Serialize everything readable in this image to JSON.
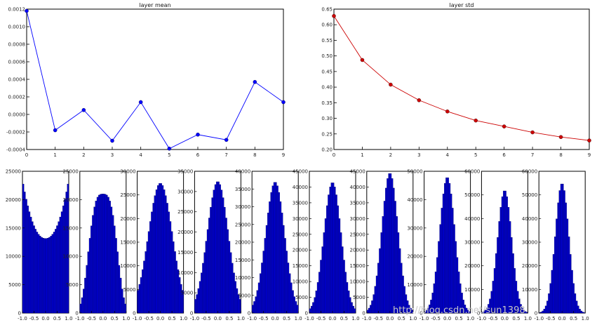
{
  "watermark": "http://blog.csdn.net/sun1398",
  "chart_data": [
    {
      "type": "line",
      "title": "layer mean",
      "x": [
        0,
        1,
        2,
        3,
        4,
        5,
        6,
        7,
        8,
        9
      ],
      "y": [
        0.00118,
        -0.00018,
        5e-05,
        -0.0003,
        0.00014,
        -0.00039,
        -0.00023,
        -0.00029,
        0.00037,
        0.00014
      ],
      "xlim": [
        0,
        9
      ],
      "ylim": [
        -0.0004,
        0.0012
      ],
      "xticks": [
        "0",
        "1",
        "2",
        "3",
        "4",
        "5",
        "6",
        "7",
        "8",
        "9"
      ],
      "yticks": [
        "0.0012",
        "0.0010",
        "0.0008",
        "0.0006",
        "0.0004",
        "0.0002",
        "0.0000",
        "-0.0002",
        "-0.0004"
      ],
      "color": "#0000ff",
      "grid": false
    },
    {
      "type": "line",
      "title": "layer std",
      "x": [
        0,
        1,
        2,
        3,
        4,
        5,
        6,
        7,
        8,
        9
      ],
      "y": [
        0.628,
        0.487,
        0.408,
        0.358,
        0.322,
        0.293,
        0.274,
        0.255,
        0.24,
        0.229
      ],
      "xlim": [
        0,
        9
      ],
      "ylim": [
        0.2,
        0.65
      ],
      "xticks": [
        "0",
        "1",
        "2",
        "3",
        "4",
        "5",
        "6",
        "7",
        "8",
        "9"
      ],
      "yticks": [
        "0.65",
        "0.60",
        "0.55",
        "0.50",
        "0.45",
        "0.40",
        "0.35",
        "0.30",
        "0.25",
        "0.20"
      ],
      "color": "#cc0000",
      "grid": false
    },
    {
      "type": "bar",
      "title": "",
      "xlim": [
        -1.0,
        1.0
      ],
      "xticks": [
        "-1.0",
        "-0.5",
        "0.0",
        "0.5",
        "1.0"
      ],
      "color": "#0000cc",
      "histograms": [
        {
          "ymax": 25000,
          "yticks": [
            "25000",
            "20000",
            "15000",
            "10000",
            "5000",
            "0"
          ],
          "peak": 23500,
          "std": 0.628,
          "shape": "u"
        },
        {
          "ymax": 25000,
          "yticks": [
            "25000",
            "20000",
            "15000",
            "10000",
            "5000",
            "0"
          ],
          "peak": 21000,
          "std": 0.487,
          "shape": "flat"
        },
        {
          "ymax": 30000,
          "yticks": [
            "30000",
            "25000",
            "20000",
            "15000",
            "10000",
            "5000",
            "0"
          ],
          "peak": 27500,
          "std": 0.408,
          "shape": "normal"
        },
        {
          "ymax": 35000,
          "yticks": [
            "35000",
            "30000",
            "25000",
            "20000",
            "15000",
            "10000",
            "5000",
            "0"
          ],
          "peak": 32500,
          "std": 0.358,
          "shape": "normal"
        },
        {
          "ymax": 40000,
          "yticks": [
            "40000",
            "35000",
            "30000",
            "25000",
            "20000",
            "15000",
            "10000",
            "5000",
            "0"
          ],
          "peak": 37000,
          "std": 0.322,
          "shape": "normal"
        },
        {
          "ymax": 45000,
          "yticks": [
            "45000",
            "40000",
            "35000",
            "30000",
            "25000",
            "20000",
            "15000",
            "10000",
            "5000",
            "0"
          ],
          "peak": 41500,
          "std": 0.293,
          "shape": "normal"
        },
        {
          "ymax": 45000,
          "yticks": [
            "45000",
            "40000",
            "35000",
            "30000",
            "25000",
            "20000",
            "15000",
            "10000",
            "5000",
            "0"
          ],
          "peak": 44500,
          "std": 0.274,
          "shape": "normal"
        },
        {
          "ymax": 50000,
          "yticks": [
            "50000",
            "40000",
            "30000",
            "20000",
            "10000",
            "0"
          ],
          "peak": 48000,
          "std": 0.255,
          "shape": "normal"
        },
        {
          "ymax": 60000,
          "yticks": [
            "60000",
            "50000",
            "40000",
            "30000",
            "20000",
            "10000",
            "0"
          ],
          "peak": 52000,
          "std": 0.24,
          "shape": "normal"
        },
        {
          "ymax": 60000,
          "yticks": [
            "60000",
            "50000",
            "40000",
            "30000",
            "20000",
            "10000",
            "0"
          ],
          "peak": 55000,
          "std": 0.229,
          "shape": "normal"
        }
      ]
    }
  ]
}
